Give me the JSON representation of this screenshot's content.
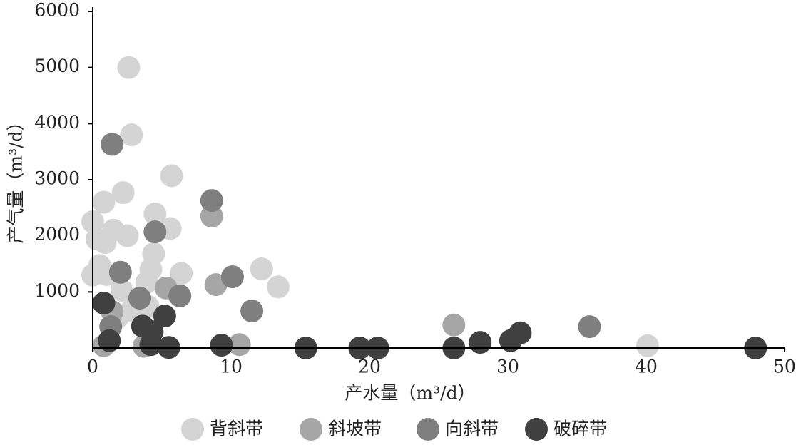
{
  "chart_data": {
    "type": "scatter",
    "x_label": "产水量（m³/d）",
    "y_label": "产气量（m³/d）",
    "xlim": [
      0,
      50
    ],
    "xticks": [
      0,
      10,
      20,
      30,
      40,
      50
    ],
    "ylim": [
      0,
      6000
    ],
    "yticks": [
      1000,
      2000,
      3000,
      4000,
      5000,
      6000
    ],
    "series": [
      {
        "name": "背斜带",
        "color": "#d4d4d4",
        "x": [
          2.6,
          2.8,
          5.7,
          2.2,
          0.8,
          0,
          4.5,
          5.6,
          2.5,
          1.5,
          0.9,
          0.3,
          4.4,
          4.2,
          0.5,
          0,
          1.0,
          6.4,
          12.2,
          13.4,
          3.9,
          2.1,
          5.9,
          4.0,
          2.8,
          1.8,
          40.1
        ],
        "values": [
          5000,
          3800,
          3070,
          2770,
          2600,
          2250,
          2390,
          2130,
          2000,
          2100,
          1880,
          1940,
          1680,
          1400,
          1470,
          1300,
          1310,
          1330,
          1410,
          1090,
          1170,
          1030,
          1020,
          740,
          670,
          550,
          40
        ]
      },
      {
        "name": "斜坡带",
        "color": "#a6a6a6",
        "x": [
          8.6,
          8.9,
          26.1,
          10.6,
          0.8,
          3.7,
          5.3,
          1.4
        ],
        "values": [
          2350,
          1130,
          410,
          60,
          40,
          30,
          1070,
          650
        ]
      },
      {
        "name": "向斜带",
        "color": "#7f7f7f",
        "x": [
          1.4,
          8.6,
          4.5,
          2.0,
          10.1,
          6.3,
          11.5,
          35.9,
          3.4,
          1.3
        ],
        "values": [
          3630,
          2630,
          2070,
          1350,
          1270,
          930,
          660,
          380,
          890,
          380
        ]
      },
      {
        "name": "破碎带",
        "color": "#404040",
        "x": [
          0.8,
          5.2,
          3.6,
          4.3,
          1.2,
          4.2,
          5.5,
          9.3,
          15.4,
          19.3,
          20.6,
          26.1,
          28.0,
          30.2,
          30.9,
          47.9
        ],
        "values": [
          800,
          570,
          390,
          290,
          130,
          60,
          10,
          50,
          0,
          0,
          0,
          0,
          100,
          130,
          270,
          0
        ]
      }
    ]
  }
}
